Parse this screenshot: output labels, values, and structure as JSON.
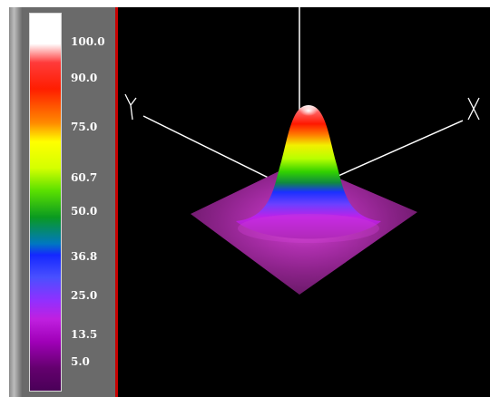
{
  "colors": {
    "background": "#000000",
    "legend_panel": "#6a6a6a",
    "legend_border": "#c80000",
    "axis": "#ffffff",
    "base": "#7a1e78"
  },
  "chart_data": {
    "type": "surface3d",
    "title": "",
    "axes": {
      "x_label": "X",
      "y_label": "Y"
    },
    "colorbar": {
      "range": [
        5.0,
        100.0
      ],
      "ticks": [
        "100.0",
        "90.0",
        "75.0",
        "60.7",
        "50.0",
        "36.8",
        "25.0",
        "13.5",
        "5.0"
      ],
      "colormap": [
        "white",
        "red",
        "orange",
        "yellow",
        "green",
        "blue",
        "purple",
        "magenta",
        "dark-purple"
      ]
    },
    "surface": {
      "shape": "gaussian-peak",
      "peak_value": 100.0,
      "base_value": 5.0
    }
  }
}
